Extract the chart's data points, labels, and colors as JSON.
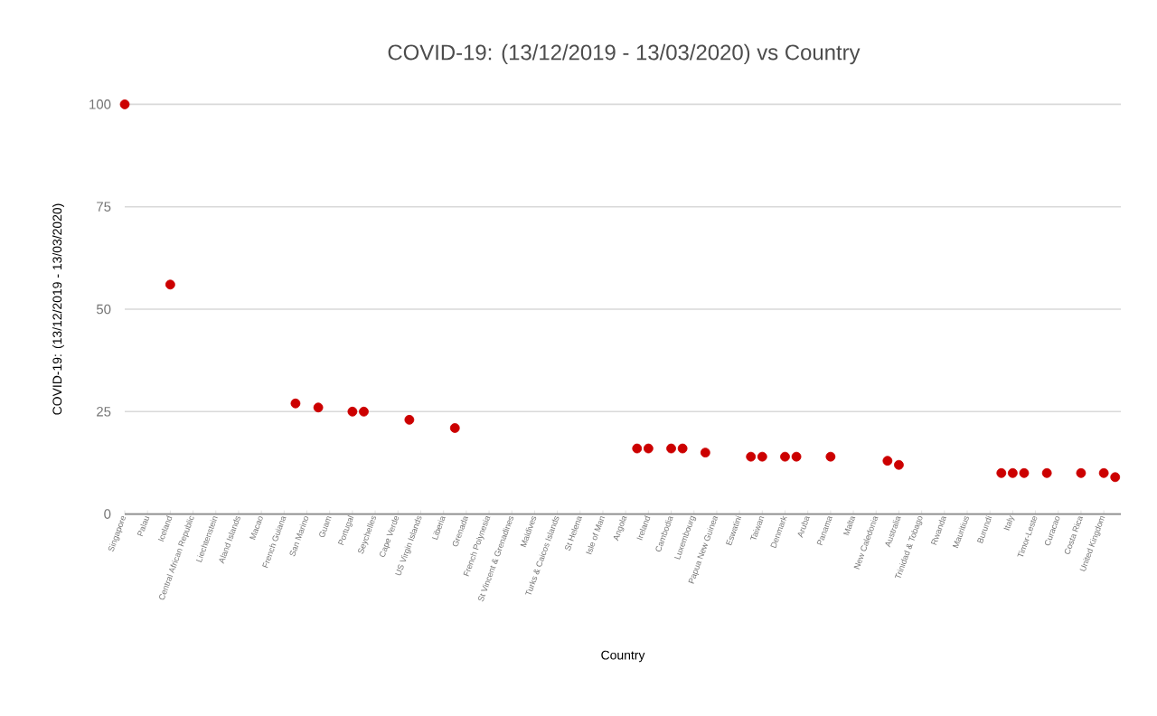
{
  "chart_data": {
    "type": "scatter",
    "title": "COVID-19: (13/12/2019 - 13/03/2020) vs Country",
    "xlabel": "Country",
    "ylabel": "COVID-19: (13/12/2019 - 13/03/2020)",
    "categories": [
      "Singapore",
      null,
      "Palau",
      null,
      "Iceland",
      null,
      "Central African Republic",
      null,
      "Liechtenstein",
      null,
      "Aland Islands",
      null,
      "Macao",
      null,
      "French Guiana",
      null,
      "San Marino",
      null,
      "Guam",
      null,
      "Portugal",
      null,
      "Seychelles",
      null,
      "Cape Verde",
      null,
      "US Virgin Islands",
      null,
      "Liberia",
      null,
      "Grenada",
      null,
      "French Polynesia",
      null,
      "St Vincent & Grenadines",
      null,
      "Maldives",
      null,
      "Turks & Caicos Islands",
      null,
      "St Helena",
      null,
      "Isle of Man",
      null,
      "Angola",
      null,
      "Ireland",
      null,
      "Cambodia",
      null,
      "Luxembourg",
      null,
      "Papua New Guinea",
      null,
      "Eswatini",
      null,
      "Taiwan",
      null,
      "Denmark",
      null,
      "Aruba",
      null,
      "Panama",
      null,
      "Malta",
      null,
      "New Caledonia",
      null,
      "Australia",
      null,
      "Trinidad & Tobago",
      null,
      "Rwanda",
      null,
      "Mauritius",
      null,
      "Burundi",
      null,
      "Italy",
      null,
      "Timor-Leste",
      null,
      "Curacao",
      null,
      "Costa Rica",
      null,
      "United Kingdom",
      null
    ],
    "values": [
      100,
      null,
      null,
      null,
      56,
      null,
      null,
      null,
      null,
      null,
      null,
      null,
      null,
      null,
      null,
      27,
      null,
      26,
      null,
      null,
      25,
      25,
      null,
      null,
      null,
      23,
      null,
      null,
      null,
      21,
      null,
      null,
      null,
      null,
      null,
      null,
      null,
      null,
      null,
      null,
      null,
      null,
      null,
      null,
      null,
      16,
      16,
      null,
      16,
      16,
      null,
      15,
      null,
      null,
      null,
      14,
      14,
      null,
      14,
      14,
      null,
      null,
      14,
      null,
      null,
      null,
      null,
      13,
      12,
      null,
      null,
      null,
      null,
      null,
      null,
      null,
      null,
      10,
      10,
      10,
      null,
      10,
      null,
      null,
      10,
      null,
      10,
      9
    ],
    "color": "#cc0000",
    "ylim": [
      0,
      100
    ],
    "yticks": [
      0,
      25,
      50,
      75,
      100
    ],
    "grid": "y",
    "marker": "circle"
  }
}
